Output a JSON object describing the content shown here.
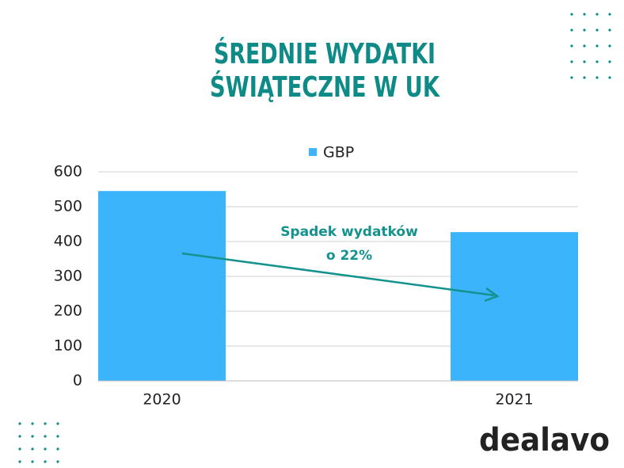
{
  "chart_data": {
    "type": "bar",
    "title": [
      "ŚREDNIE WYDATKI",
      "ŚWIĄTECZNE W UK"
    ],
    "categories": [
      "2020",
      "2021"
    ],
    "series": [
      {
        "name": "GBP",
        "color": "#3cb4fc",
        "values": [
          545,
          427
        ]
      }
    ],
    "ylim": [
      0,
      600
    ],
    "yticks": [
      0,
      100,
      200,
      300,
      400,
      500,
      600
    ],
    "grid": true,
    "annotation": [
      "Spadek wydatków",
      "o 22%"
    ]
  },
  "logo": "dealavo"
}
